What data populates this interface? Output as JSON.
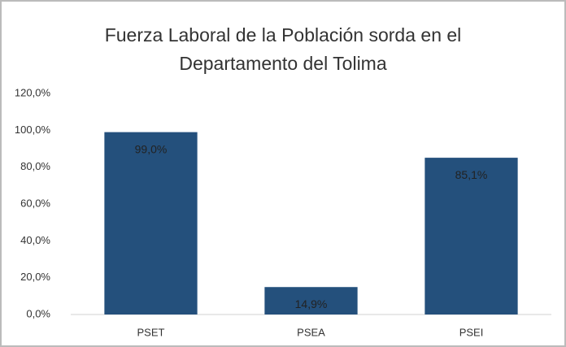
{
  "chart_data": {
    "type": "bar",
    "title": "Fuerza Laboral de la Población sorda en el Departamento del Tolima",
    "categories": [
      "PSET",
      "PSEA",
      "PSEI"
    ],
    "values": [
      99.0,
      14.9,
      85.1
    ],
    "value_labels": [
      "99,0%",
      "14,9%",
      "85,1%"
    ],
    "color": "#24507c",
    "ylim": [
      0,
      120
    ],
    "yticks": [
      {
        "value": 0,
        "label": "0,0%"
      },
      {
        "value": 20,
        "label": "20,0%"
      },
      {
        "value": 40,
        "label": "40,0%"
      },
      {
        "value": 60,
        "label": "60,0%"
      },
      {
        "value": 80,
        "label": "80,0%"
      },
      {
        "value": 100,
        "label": "100,0%"
      },
      {
        "value": 120,
        "label": "120,0%"
      }
    ],
    "grid": false
  }
}
